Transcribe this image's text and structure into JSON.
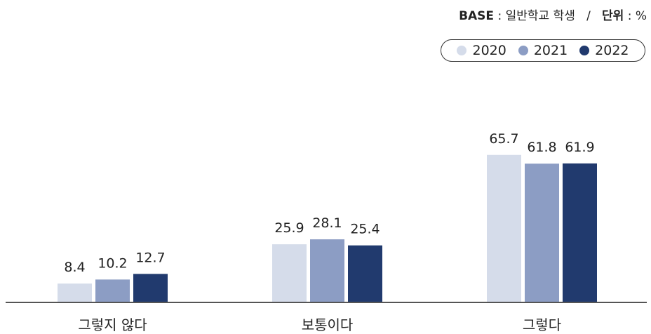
{
  "header": {
    "base_label": "BASE",
    "base_value": "일반학교 학생",
    "separator": "/",
    "unit_label": "단위",
    "unit_value": "%"
  },
  "legend": {
    "items": [
      "2020",
      "2021",
      "2022"
    ]
  },
  "colors": {
    "2020": "#d5dcea",
    "2021": "#8c9dc4",
    "2022": "#213a6e",
    "axis": "#555555"
  },
  "chart_data": {
    "type": "bar",
    "categories": [
      "그렇지 않다",
      "보통이다",
      "그렇다"
    ],
    "series": [
      {
        "name": "2020",
        "values": [
          8.4,
          25.9,
          65.7
        ]
      },
      {
        "name": "2021",
        "values": [
          10.2,
          28.1,
          61.8
        ]
      },
      {
        "name": "2022",
        "values": [
          12.7,
          25.4,
          61.9
        ]
      }
    ],
    "ylim": [
      0,
      100
    ],
    "legend_position": "top-right",
    "grid": false
  }
}
